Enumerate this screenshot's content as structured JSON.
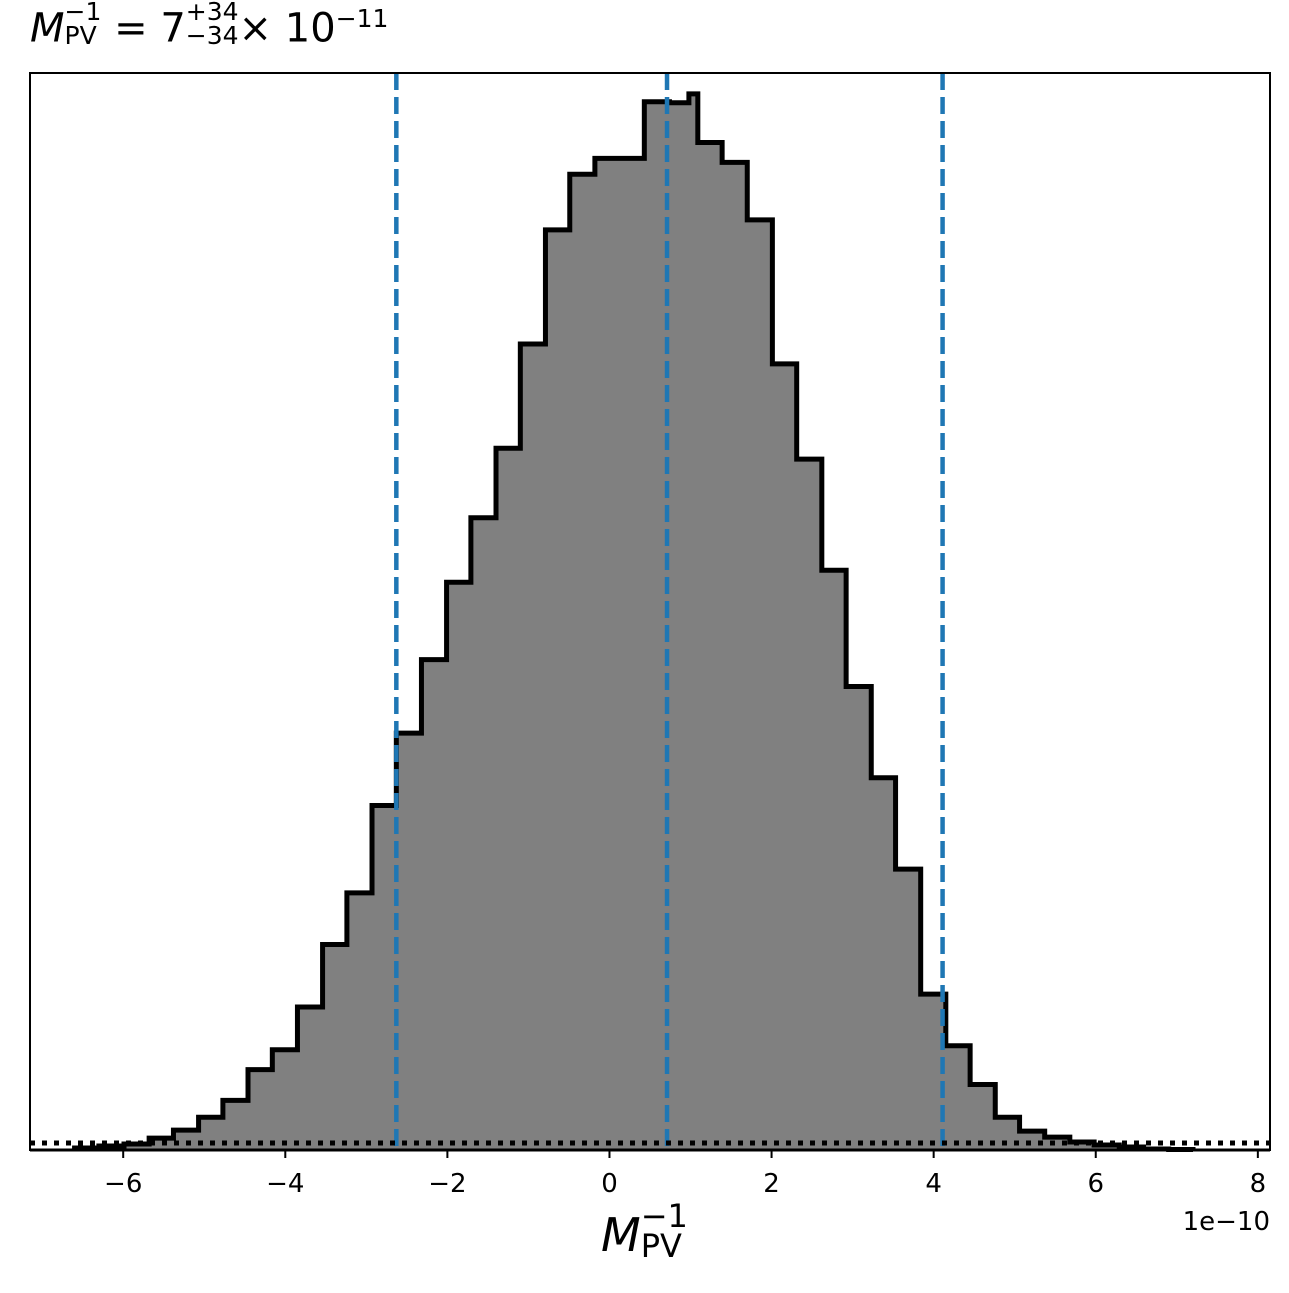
{
  "title": {
    "var_base": "M",
    "var_sup": "−1",
    "var_sub": "PV",
    "equals": " = ",
    "median": "7",
    "plus": "+34",
    "minus": "−34",
    "times_exp": "× 10",
    "exp": "−11"
  },
  "xlabel": {
    "base": "M",
    "sup": "−1",
    "sub": "PV"
  },
  "offset_text": "1e−10",
  "colors": {
    "fill": "#808080",
    "edge": "#000000",
    "vlines": "#1f77b4",
    "baseline": "#000000"
  },
  "chart_data": {
    "type": "bar",
    "histogram": true,
    "xlim": [
      -7.15,
      8.15
    ],
    "ylim": [
      0,
      1
    ],
    "x_scale_note": "1e-10",
    "xticks": [
      -6,
      -4,
      -2,
      0,
      2,
      4,
      6,
      8
    ],
    "xtick_labels": [
      "−6",
      "−4",
      "−2",
      "0",
      "2",
      "4",
      "6",
      "8"
    ],
    "bin_edges": [
      -6.6,
      -6.3,
      -5.99,
      -5.68,
      -5.38,
      -5.07,
      -4.77,
      -4.46,
      -4.16,
      -3.85,
      -3.54,
      -3.24,
      -2.93,
      -2.63,
      -2.32,
      -2.01,
      -1.71,
      -1.4,
      -1.1,
      -0.79,
      -0.49,
      -0.18,
      0.13,
      0.43,
      0.74,
      0.98,
      1.09,
      1.39,
      1.7,
      2.01,
      2.31,
      2.62,
      2.92,
      3.23,
      3.53,
      3.84,
      4.15,
      4.45,
      4.76,
      5.06,
      5.37,
      5.68,
      5.98,
      6.29,
      6.59,
      6.9,
      7.2
    ],
    "counts": [
      0.002,
      0.004,
      0.006,
      0.012,
      0.02,
      0.033,
      0.05,
      0.081,
      0.101,
      0.144,
      0.207,
      0.259,
      0.347,
      0.42,
      0.494,
      0.572,
      0.637,
      0.707,
      0.812,
      0.927,
      0.983,
      0.999,
      0.999,
      1.056,
      1.055,
      1.064,
      1.015,
      0.995,
      0.937,
      0.792,
      0.696,
      0.584,
      0.467,
      0.375,
      0.283,
      0.157,
      0.105,
      0.066,
      0.033,
      0.019,
      0.013,
      0.008,
      0.005,
      0.003,
      0.001,
      0.0005
    ],
    "quantile_lines": [
      -2.63,
      0.71,
      4.11
    ],
    "baseline_dotted": 0.007
  }
}
